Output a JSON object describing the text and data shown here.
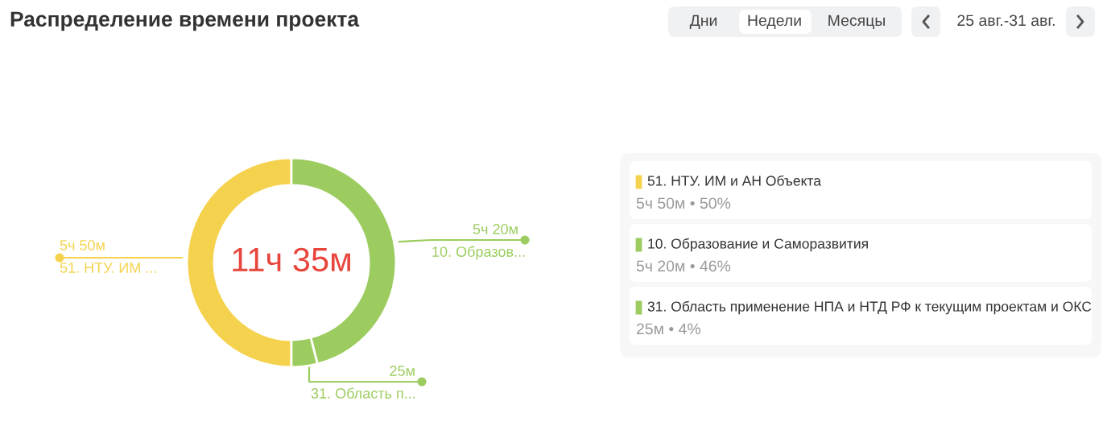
{
  "chart_data": {
    "type": "donut",
    "title": "Распределение времени проекта",
    "categories": [
      "51. НТУ. ИМ и АН Объекта",
      "10. Образование и Саморазвития",
      "31. Область применение НПА и НТД РФ к текущим проектам и ОКС"
    ],
    "values": [
      50,
      46,
      4
    ],
    "colors": [
      "#f5d24e",
      "#9ccc5f",
      "#9ccc5f"
    ],
    "legend": "right",
    "annotations": [
      "Дни",
      "Недели",
      "Месяцы",
      "25 авг.-31 авг.",
      "11ч 35м",
      "51. НТУ. ИМ ...",
      "10. Образов...",
      "31. Область п...",
      "5ч 50м • 50%",
      "5ч 20м • 46%",
      "25м • 4%",
      "5ч 50м",
      "5ч 20м",
      "25м"
    ]
  }
}
